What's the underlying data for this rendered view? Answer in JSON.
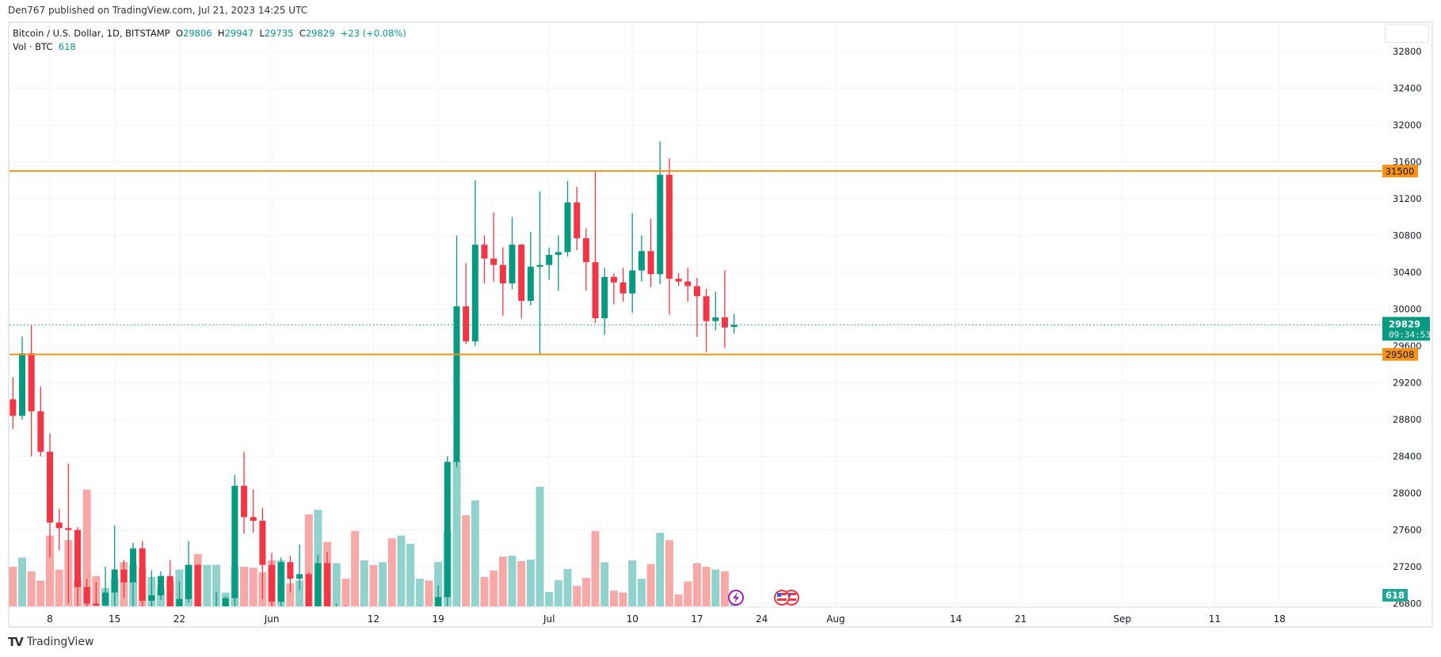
{
  "published": "Den767 published on TradingView.com, Jul 21, 2023 14:25 UTC",
  "legend": {
    "symbol": "Bitcoin / U.S. Dollar, 1D, BITSTAMP",
    "o_label": "O",
    "open": "29806",
    "h_label": "H",
    "high": "29947",
    "l_label": "L",
    "low": "29735",
    "c_label": "C",
    "close": "29829",
    "change": "+23 (+0.08%)",
    "vol_label": "Vol · BTC",
    "vol": "618"
  },
  "brand": "TradingView",
  "colors": {
    "up": "#089981",
    "down": "#f23645",
    "up_vol": "#92d2cc",
    "down_vol": "#f7a9a7",
    "level": "#f7931a",
    "grid": "#f0f3fa"
  },
  "chart_data": {
    "type": "candlestick",
    "ylim": [
      26800,
      32800
    ],
    "y_ticks": [
      32800,
      32400,
      32000,
      31600,
      31200,
      30800,
      30400,
      30000,
      29600,
      29200,
      28800,
      28400,
      28000,
      27600,
      27200,
      26800
    ],
    "x_ticks": [
      {
        "label": "8",
        "date": "2023-05-08"
      },
      {
        "label": "15",
        "date": "2023-05-15"
      },
      {
        "label": "22",
        "date": "2023-05-22"
      },
      {
        "label": "Jun",
        "date": "2023-06-01"
      },
      {
        "label": "12",
        "date": "2023-06-12"
      },
      {
        "label": "19",
        "date": "2023-06-19"
      },
      {
        "label": "Jul",
        "date": "2023-07-01"
      },
      {
        "label": "10",
        "date": "2023-07-10"
      },
      {
        "label": "17",
        "date": "2023-07-17"
      },
      {
        "label": "24",
        "date": "2023-07-24"
      },
      {
        "label": "Aug",
        "date": "2023-08-01"
      },
      {
        "label": "14",
        "date": "2023-08-14"
      },
      {
        "label": "21",
        "date": "2023-08-21"
      },
      {
        "label": "Sep",
        "date": "2023-09-01"
      },
      {
        "label": "11",
        "date": "2023-09-11"
      },
      {
        "label": "18",
        "date": "2023-09-18"
      }
    ],
    "levels": [
      {
        "price": 31500,
        "label": "31500"
      },
      {
        "price": 29508,
        "label": "29508"
      }
    ],
    "last_price": {
      "price": 29829,
      "label": "29829",
      "countdown": "09:34:53"
    },
    "last_volume_label": "618",
    "start_date": "2023-05-04",
    "ohlcv": [
      [
        29020,
        29260,
        28700,
        28840,
        1548
      ],
      [
        28840,
        29700,
        28800,
        29520,
        1908
      ],
      [
        29520,
        29820,
        28400,
        28890,
        1368
      ],
      [
        28890,
        29160,
        28400,
        28450,
        1008
      ],
      [
        28450,
        28650,
        27300,
        27680,
        2772
      ],
      [
        27680,
        27830,
        27380,
        27620,
        1440
      ],
      [
        27620,
        28320,
        26800,
        27600,
        2592
      ],
      [
        27600,
        27630,
        26700,
        26980,
        1008
      ],
      [
        26980,
        27070,
        25800,
        26800,
        4572
      ],
      [
        26800,
        27030,
        26710,
        26780,
        1188
      ],
      [
        26780,
        27200,
        26590,
        26920,
        720
      ],
      [
        26920,
        27650,
        26740,
        27170,
        1080
      ],
      [
        27170,
        27270,
        26860,
        27030,
        1728
      ],
      [
        27030,
        27460,
        26580,
        27400,
        1620
      ],
      [
        27400,
        27480,
        26400,
        26830,
        1512
      ],
      [
        26830,
        27160,
        26660,
        26890,
        1152
      ],
      [
        26890,
        27150,
        26840,
        27100,
        720
      ],
      [
        27100,
        27270,
        26700,
        26750,
        1008
      ],
      [
        26750,
        27040,
        26540,
        26850,
        1440
      ],
      [
        26850,
        27480,
        26810,
        27220,
        1620
      ],
      [
        27220,
        27230,
        26100,
        26330,
        2052
      ],
      [
        26330,
        26640,
        25870,
        26480,
        1620
      ],
      [
        26480,
        26930,
        26340,
        26720,
        1620
      ],
      [
        26720,
        26880,
        26580,
        26860,
        540
      ],
      [
        26860,
        28200,
        26770,
        28080,
        1548
      ],
      [
        28080,
        28450,
        27560,
        27740,
        1548
      ],
      [
        27740,
        28040,
        27570,
        27700,
        1512
      ],
      [
        27700,
        27840,
        26850,
        27220,
        1332
      ],
      [
        27220,
        27350,
        26610,
        26820,
        1800
      ],
      [
        26820,
        27300,
        26520,
        27250,
        1800
      ],
      [
        27250,
        27320,
        26920,
        27070,
        900
      ],
      [
        27070,
        27440,
        26950,
        27120,
        1008
      ],
      [
        27120,
        27140,
        25380,
        25740,
        3600
      ],
      [
        25740,
        27330,
        25380,
        27240,
        3780
      ],
      [
        27240,
        27360,
        26140,
        26350,
        2520
      ],
      [
        26350,
        26800,
        26210,
        26500,
        1692
      ],
      [
        26500,
        26780,
        26300,
        26480,
        1080
      ],
      [
        26480,
        26530,
        25400,
        25850,
        2952
      ],
      [
        25850,
        26200,
        25630,
        25940,
        1800
      ],
      [
        25940,
        26090,
        25650,
        25900,
        1620
      ],
      [
        25900,
        26420,
        25730,
        25920,
        1728
      ],
      [
        25920,
        26080,
        24840,
        25120,
        2664
      ],
      [
        25120,
        25740,
        24790,
        25580,
        2772
      ],
      [
        25580,
        26480,
        25180,
        26340,
        2448
      ],
      [
        26340,
        26780,
        26180,
        26520,
        1080
      ],
      [
        26520,
        26690,
        26280,
        26340,
        1008
      ],
      [
        26340,
        27000,
        26260,
        26870,
        1740
      ],
      [
        26870,
        28400,
        26620,
        28340,
        2950
      ],
      [
        28340,
        30800,
        28280,
        30030,
        5700
      ],
      [
        30030,
        30500,
        29620,
        29650,
        3565
      ],
      [
        29650,
        31400,
        29600,
        30700,
        4150
      ],
      [
        30700,
        30800,
        30280,
        30550,
        1150
      ],
      [
        30550,
        31050,
        30300,
        30480,
        1400
      ],
      [
        30480,
        30670,
        29930,
        30280,
        1950
      ],
      [
        30280,
        31000,
        30220,
        30700,
        1980
      ],
      [
        30700,
        30710,
        29900,
        30090,
        1770
      ],
      [
        30090,
        30840,
        30040,
        30460,
        1830
      ],
      [
        30460,
        31280,
        29500,
        30480,
        4680
      ],
      [
        30480,
        30670,
        30320,
        30590,
        560
      ],
      [
        30590,
        30800,
        30200,
        30620,
        1020
      ],
      [
        30620,
        31390,
        30570,
        31160,
        1460
      ],
      [
        31160,
        31330,
        30640,
        30770,
        800
      ],
      [
        30770,
        30880,
        30200,
        30510,
        1120
      ],
      [
        30510,
        31500,
        29850,
        29900,
        2952
      ],
      [
        29900,
        30450,
        29720,
        30350,
        1728
      ],
      [
        30350,
        30390,
        30050,
        30290,
        612
      ],
      [
        30290,
        30450,
        30080,
        30170,
        540
      ],
      [
        30170,
        31040,
        29960,
        30420,
        1800
      ],
      [
        30420,
        30800,
        30300,
        30630,
        1080
      ],
      [
        30630,
        30980,
        30240,
        30380,
        1656
      ],
      [
        30380,
        31820,
        30270,
        31460,
        2880
      ],
      [
        31460,
        31640,
        29940,
        30330,
        2592
      ],
      [
        30330,
        30390,
        30250,
        30300,
        468
      ],
      [
        30300,
        30450,
        30080,
        30250,
        972
      ],
      [
        30250,
        30340,
        29700,
        30140,
        1692
      ],
      [
        30140,
        30220,
        29530,
        29870,
        1548
      ],
      [
        29870,
        30190,
        29770,
        29910,
        1440
      ],
      [
        29910,
        30420,
        29580,
        29800,
        1368
      ],
      [
        29806,
        29947,
        29735,
        29829,
        618
      ]
    ]
  }
}
